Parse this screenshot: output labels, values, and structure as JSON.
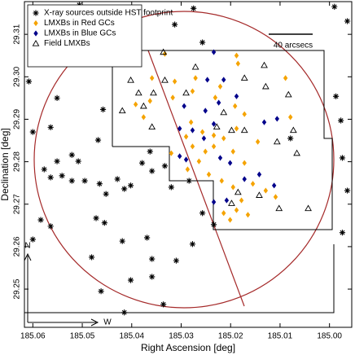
{
  "chart_data": {
    "type": "scatter",
    "x_label": "Right Ascension [deg]",
    "y_label": "Declination [deg]",
    "xlim": [
      185.0617,
      184.9955
    ],
    "ylim": [
      29.241,
      29.3177
    ],
    "xticks": [
      185.06,
      185.05,
      185.04,
      185.03,
      185.02,
      185.01,
      {
        "value": 185,
        "label": "185.00"
      }
    ],
    "yticks": [
      29.25,
      29.26,
      29.27,
      29.28,
      29.29,
      {
        "value": 29.3,
        "label": "29.30"
      },
      29.31
    ],
    "legend": "upper left",
    "annotations": {
      "scale_bar": "40 arcsecs",
      "north": "N",
      "west": "W"
    },
    "series": [
      {
        "name": "X-ray sources outside HST footprint",
        "color": "#000000",
        "marker": "asterisk",
        "x": [
          185.0595,
          185.0506,
          185.0275,
          184.999,
          184.9964,
          185.0608,
          185.0551,
          185.0458,
          185.0564,
          185.06,
          185.0468,
          185.0521,
          185.0508,
          185.0551,
          185.0541,
          185.0521,
          185.0577,
          185.0564,
          185.0495,
          185.0452,
          185.0415,
          185.0465,
          185.0472,
          185.0455,
          185.0564,
          185.0419,
          185.0369,
          185.0359,
          185.0481,
          185.0402,
          185.0359,
          185.0336,
          185.0462,
          185.0415,
          185.031,
          185.0277,
          185.0234,
          185.0257,
          185.06,
          185.0584,
          185.0333,
          185.0359,
          185.0363,
          184.9974,
          184.9974,
          184.9977,
          185.0079,
          184.9964,
          184.9987,
          185.0313,
          185.0257,
          185.0284,
          185.032,
          185.0402,
          185.0429,
          185.0379
        ],
        "values": [
          29.3161,
          29.3169,
          29.3161,
          29.3165,
          29.3131,
          29.2989,
          29.295,
          29.2923,
          29.2881,
          29.287,
          29.2851,
          29.2816,
          29.2801,
          29.2801,
          29.2767,
          29.2755,
          29.2782,
          29.2763,
          29.2755,
          29.2724,
          29.2736,
          29.2748,
          29.2667,
          29.2656,
          29.2648,
          29.2613,
          29.2621,
          29.2571,
          29.2575,
          29.2521,
          29.2529,
          29.2464,
          29.2495,
          29.2445,
          29.2567,
          29.2606,
          29.2652,
          29.2679,
          29.2617,
          29.2663,
          29.279,
          29.2778,
          29.2824,
          29.2633,
          29.2809,
          29.2897,
          29.2855,
          29.2732,
          29.2954,
          29.3123,
          29.3081,
          29.2755,
          29.274,
          29.2744,
          29.2759,
          29.2797
        ]
      },
      {
        "name": "LMXBs in Red GCs",
        "color": "#f5a300",
        "marker": "diamond",
        "x": [
          185.0333,
          185.0188,
          185.0185,
          185.0359,
          185.0271,
          185.0313,
          185.0277,
          185.0221,
          185.0089,
          185.0363,
          185.0392,
          185.0231,
          185.0191,
          185.0172,
          185.0376,
          185.028,
          185.0257,
          185.0234,
          185.0214,
          185.0188,
          185.029,
          185.0277,
          185.0251,
          185.0234,
          185.0195,
          185.0172,
          185.0287,
          185.0264,
          185.0244,
          185.0218,
          185.0195,
          185.0178,
          185.0214,
          185.0188,
          185.0165,
          185.0155,
          185.0129,
          185.0109,
          185.0145,
          185.0079,
          185.0201,
          185.032,
          185.0317
        ],
        "values": [
          29.3054,
          29.305,
          29.3031,
          29.2997,
          29.2997,
          29.2989,
          29.2966,
          29.2977,
          29.2997,
          29.2943,
          29.2935,
          29.2951,
          29.2931,
          29.2912,
          29.2905,
          29.2893,
          29.287,
          29.2862,
          29.2855,
          29.2878,
          29.2859,
          29.2836,
          29.2824,
          29.2836,
          29.2824,
          29.2797,
          29.2782,
          29.2801,
          29.277,
          29.2755,
          29.274,
          29.2709,
          29.2679,
          29.2686,
          29.2675,
          29.2748,
          29.2732,
          29.2717,
          29.2847,
          29.2905,
          29.2663,
          29.282,
          29.2951
        ]
      },
      {
        "name": "LMXBs in Blue GCs",
        "color": "#00008b",
        "marker": "diamond",
        "x": [
          185.0234,
          185.0247,
          185.0214,
          185.0224,
          185.0188,
          185.0294,
          185.0251,
          185.0132,
          185.0106,
          185.0277,
          185.0234,
          185.0303,
          185.029,
          185.0254,
          185.0221,
          185.0201,
          185.0142,
          185.0172,
          185.0208,
          185.0234,
          185.0112,
          185.0303
        ],
        "values": [
          29.3058,
          29.2993,
          29.2993,
          29.2939,
          29.2954,
          29.2931,
          29.292,
          29.2893,
          29.2901,
          29.2874,
          29.2889,
          29.2813,
          29.2805,
          29.2855,
          29.2809,
          29.2797,
          29.277,
          29.2759,
          29.2709,
          29.2705,
          29.2744,
          29.2878
        ]
      },
      {
        "name": "Field LMXBs",
        "color": "#000000",
        "marker": "triangle-open",
        "x": [
          185.0336,
          185.0271,
          185.0402,
          185.0333,
          185.0172,
          185.0132,
          185.0386,
          185.0356,
          185.029,
          185.0376,
          185.0419,
          185.0129,
          185.0083,
          185.0073,
          185.0066,
          185.0228,
          185.0198,
          185.0172,
          185.0198,
          185.0142,
          185.0102,
          185.0043,
          185.0185,
          185.0214,
          185.0359,
          185.0106
        ],
        "values": [
          29.3058,
          29.3023,
          29.2992,
          29.2992,
          29.2997,
          29.3027,
          29.2962,
          29.2962,
          29.2962,
          29.2931,
          29.292,
          29.2977,
          29.2958,
          29.2874,
          29.282,
          29.2882,
          29.2874,
          29.2874,
          29.2702,
          29.2721,
          29.269,
          29.269,
          29.2728,
          29.2916,
          29.2882,
          29.2847
        ]
      }
    ]
  }
}
